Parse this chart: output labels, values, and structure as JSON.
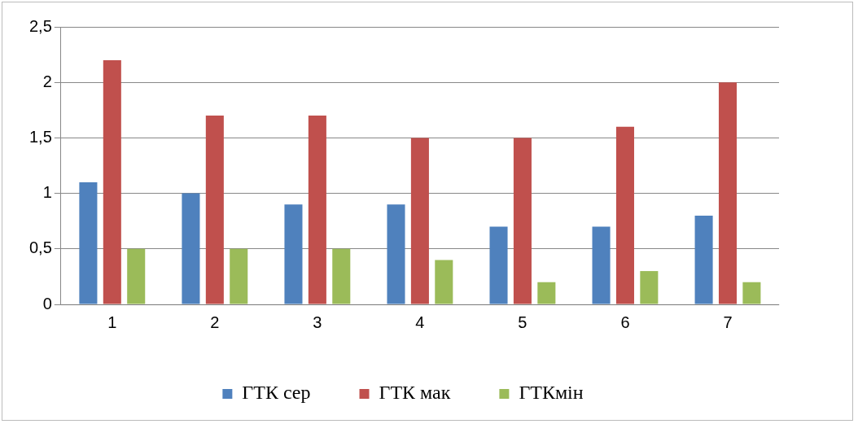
{
  "chart_data": {
    "type": "bar",
    "categories": [
      "1",
      "2",
      "3",
      "4",
      "5",
      "6",
      "7"
    ],
    "series": [
      {
        "name": "ГТК сер",
        "color": "#4f81bd",
        "values": [
          1.1,
          1.0,
          0.9,
          0.9,
          0.7,
          0.7,
          0.8
        ]
      },
      {
        "name": "ГТК мак",
        "color": "#c0504d",
        "values": [
          2.2,
          1.7,
          1.7,
          1.5,
          1.5,
          1.6,
          2.0
        ]
      },
      {
        "name": "ГТКмін",
        "color": "#9bbb59",
        "values": [
          0.5,
          0.5,
          0.5,
          0.4,
          0.2,
          0.3,
          0.2
        ]
      }
    ],
    "ylim": [
      0,
      2.5
    ],
    "yticks": [
      0,
      {
        "value": 0.5,
        "label": "0,5"
      },
      1,
      {
        "value": 1.5,
        "label": "1,5"
      },
      2,
      {
        "value": 2.5,
        "label": "2,5"
      }
    ],
    "grid": "y",
    "legend": "bottom"
  }
}
